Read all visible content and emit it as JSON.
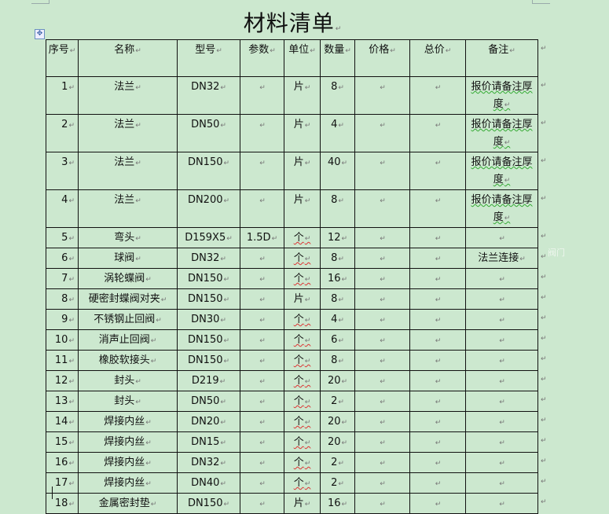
{
  "document": {
    "title": "材料清单",
    "side_note": "阀门",
    "table": {
      "headers": [
        "序号",
        "名称",
        "型号",
        "参数",
        "单位",
        "数量",
        "价格",
        "总价",
        "备注"
      ],
      "rows": [
        [
          "1",
          "法兰",
          "DN32",
          "",
          "片",
          "8",
          "",
          "",
          "报价请备注厚度"
        ],
        [
          "2",
          "法兰",
          "DN50",
          "",
          "片",
          "4",
          "",
          "",
          "报价请备注厚度"
        ],
        [
          "3",
          "法兰",
          "DN150",
          "",
          "片",
          "40",
          "",
          "",
          "报价请备注厚度"
        ],
        [
          "4",
          "法兰",
          "DN200",
          "",
          "片",
          "8",
          "",
          "",
          "报价请备注厚度"
        ],
        [
          "5",
          "弯头",
          "D159X5",
          "1.5D",
          "个",
          "12",
          "",
          "",
          ""
        ],
        [
          "6",
          "球阀",
          "DN32",
          "",
          "个",
          "8",
          "",
          "",
          "法兰连接"
        ],
        [
          "7",
          "涡轮蝶阀",
          "DN150",
          "",
          "个",
          "16",
          "",
          "",
          ""
        ],
        [
          "8",
          "硬密封蝶阀对夹",
          "DN150",
          "",
          "片",
          "8",
          "",
          "",
          ""
        ],
        [
          "9",
          "不锈钢止回阀",
          "DN30",
          "",
          "个",
          "4",
          "",
          "",
          ""
        ],
        [
          "10",
          "消声止回阀",
          "DN150",
          "",
          "个",
          "6",
          "",
          "",
          ""
        ],
        [
          "11",
          "橡胶软接头",
          "DN150",
          "",
          "个",
          "8",
          "",
          "",
          ""
        ],
        [
          "12",
          "封头",
          "D219",
          "",
          "个",
          "20",
          "",
          "",
          ""
        ],
        [
          "13",
          "封头",
          "DN50",
          "",
          "个",
          "2",
          "",
          "",
          ""
        ],
        [
          "14",
          "焊接内丝",
          "DN20",
          "",
          "个",
          "20",
          "",
          "",
          ""
        ],
        [
          "15",
          "焊接内丝",
          "DN15",
          "",
          "个",
          "20",
          "",
          "",
          ""
        ],
        [
          "16",
          "焊接内丝",
          "DN32",
          "",
          "个",
          "2",
          "",
          "",
          ""
        ],
        [
          "17",
          "焊接内丝",
          "DN40",
          "",
          "个",
          "2",
          "",
          "",
          ""
        ],
        [
          "18",
          "金属密封垫",
          "DN150",
          "",
          "片",
          "16",
          "",
          "",
          ""
        ]
      ]
    }
  },
  "colors": {
    "page_background": "#cce8cf",
    "border": "#111111"
  }
}
